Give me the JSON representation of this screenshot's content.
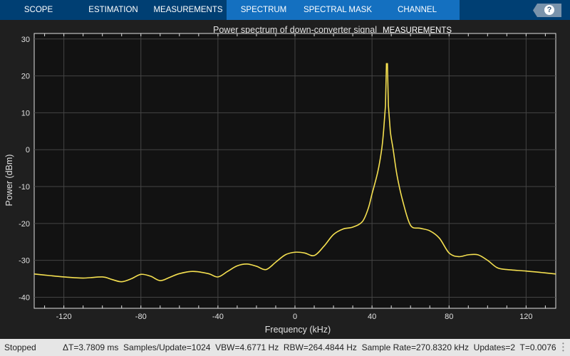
{
  "toolbar": {
    "tabs": [
      "SCOPE",
      "ESTIMATION",
      "MEASUREMENTS",
      "SPECTRUM",
      "SPECTRAL MASK",
      "CHANNEL MEASUREMENTS"
    ],
    "active_tab": "SPECTRUM",
    "help_label": "?"
  },
  "status": {
    "state": "Stopped",
    "info": "ΔT=3.7809 ms  Samples/Update=1024  VBW=4.6771 Hz  RBW=264.4844 Hz  Sample Rate=270.8320 kHz  Updates=2  T=0.0076"
  },
  "chart_data": {
    "type": "line",
    "title": "Power spectrum of down-converter signal",
    "xlabel": "Frequency (kHz)",
    "ylabel": "Power (dBm)",
    "xlim": [
      -135.4,
      135.4
    ],
    "ylim": [
      -43,
      31.5
    ],
    "xticks": [
      -120,
      -80,
      -40,
      0,
      40,
      80,
      120
    ],
    "yticks": [
      30,
      20,
      10,
      0,
      -10,
      -20,
      -30,
      -40
    ],
    "grid": true,
    "line_color": "#f5e050",
    "background": "#121212",
    "series": [
      {
        "x": [
          -135.4,
          -128,
          -120,
          -110,
          -100,
          -95,
          -90,
          -85,
          -80,
          -75,
          -70,
          -65,
          -60,
          -53,
          -45,
          -40,
          -35,
          -30,
          -25,
          -20,
          -15,
          -10,
          -5,
          0,
          5,
          10,
          15,
          20,
          25,
          30,
          35,
          38,
          40,
          43,
          45,
          46,
          47,
          47.5,
          48,
          48.5,
          49.5,
          51,
          53,
          56,
          60,
          65,
          70,
          75,
          80,
          85,
          90,
          95,
          100,
          105,
          110,
          120,
          128,
          135.4
        ],
        "y": [
          -33.7,
          -34.1,
          -34.5,
          -34.8,
          -34.5,
          -35.2,
          -35.8,
          -35,
          -33.8,
          -34.3,
          -35.5,
          -34.6,
          -33.6,
          -33,
          -33.6,
          -34.5,
          -33,
          -31.5,
          -31,
          -31.6,
          -32.5,
          -30.5,
          -28.5,
          -27.8,
          -28,
          -28.7,
          -26.2,
          -23,
          -21.5,
          -21,
          -19.5,
          -16,
          -12,
          -6,
          0,
          5,
          12,
          23.3,
          23.3,
          12,
          5,
          0,
          -7,
          -14,
          -20.5,
          -21.3,
          -22,
          -24,
          -28,
          -29,
          -28.5,
          -28.5,
          -30,
          -32,
          -32.5,
          -32.9,
          -33.3,
          -33.7
        ]
      }
    ]
  }
}
